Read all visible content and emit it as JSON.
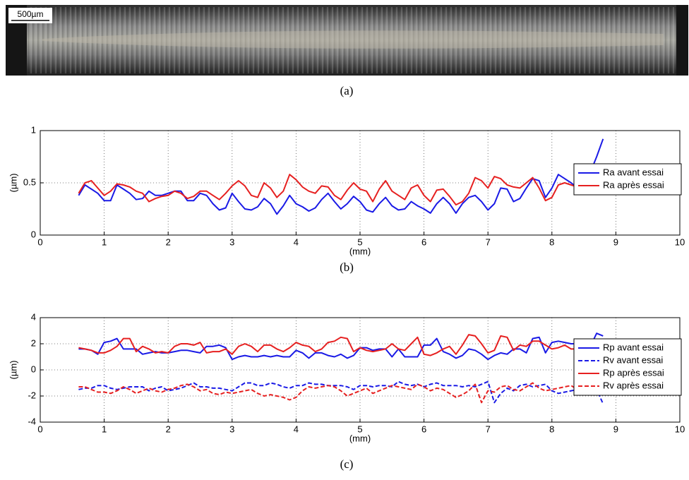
{
  "figure": {
    "scale_bar": "500µm",
    "captions": [
      "(a)",
      "(b)",
      "(c)"
    ]
  },
  "chart_data": [
    {
      "type": "line",
      "xlabel": "(mm)",
      "ylabel": "(µm)",
      "grid": true,
      "legend": "upper right",
      "xlim": [
        0,
        10
      ],
      "xticks": [
        0,
        1,
        2,
        3,
        4,
        5,
        6,
        7,
        8,
        9,
        10
      ],
      "ylim": [
        0,
        1
      ],
      "yticks": [
        0,
        0.5,
        1
      ],
      "x": [
        0.6,
        0.7,
        0.8,
        0.9,
        1.0,
        1.1,
        1.2,
        1.3,
        1.4,
        1.5,
        1.6,
        1.7,
        1.8,
        1.9,
        2.0,
        2.1,
        2.2,
        2.3,
        2.4,
        2.5,
        2.6,
        2.7,
        2.8,
        2.9,
        3.0,
        3.1,
        3.2,
        3.3,
        3.4,
        3.5,
        3.6,
        3.7,
        3.8,
        3.9,
        4.0,
        4.1,
        4.2,
        4.3,
        4.4,
        4.5,
        4.6,
        4.7,
        4.8,
        4.9,
        5.0,
        5.1,
        5.2,
        5.3,
        5.4,
        5.5,
        5.6,
        5.7,
        5.8,
        5.9,
        6.0,
        6.1,
        6.2,
        6.3,
        6.4,
        6.5,
        6.6,
        6.7,
        6.8,
        6.9,
        7.0,
        7.1,
        7.2,
        7.3,
        7.4,
        7.5,
        7.6,
        7.7,
        7.8,
        7.9,
        8.0,
        8.1,
        8.2,
        8.3,
        8.4,
        8.5,
        8.6,
        8.7,
        8.8
      ],
      "series": [
        {
          "name": "Ra avant essai",
          "color": "#1a1ae6",
          "dashed": false,
          "values": [
            0.38,
            0.48,
            0.44,
            0.4,
            0.33,
            0.33,
            0.48,
            0.44,
            0.4,
            0.34,
            0.35,
            0.42,
            0.38,
            0.38,
            0.4,
            0.42,
            0.42,
            0.33,
            0.33,
            0.4,
            0.38,
            0.3,
            0.24,
            0.26,
            0.4,
            0.32,
            0.25,
            0.24,
            0.27,
            0.35,
            0.3,
            0.2,
            0.28,
            0.38,
            0.3,
            0.27,
            0.23,
            0.26,
            0.34,
            0.4,
            0.32,
            0.25,
            0.3,
            0.37,
            0.32,
            0.24,
            0.22,
            0.3,
            0.36,
            0.28,
            0.24,
            0.25,
            0.32,
            0.28,
            0.25,
            0.21,
            0.3,
            0.36,
            0.3,
            0.21,
            0.3,
            0.36,
            0.38,
            0.32,
            0.24,
            0.3,
            0.45,
            0.44,
            0.32,
            0.35,
            0.45,
            0.54,
            0.52,
            0.36,
            0.45,
            0.58,
            0.54,
            0.5,
            0.45,
            0.43,
            0.6,
            0.75,
            0.92
          ]
        },
        {
          "name": "Ra après essai",
          "color": "#e62020",
          "dashed": false,
          "values": [
            0.4,
            0.5,
            0.52,
            0.45,
            0.38,
            0.42,
            0.49,
            0.48,
            0.46,
            0.42,
            0.4,
            0.32,
            0.35,
            0.37,
            0.38,
            0.42,
            0.4,
            0.35,
            0.37,
            0.42,
            0.42,
            0.38,
            0.34,
            0.4,
            0.47,
            0.52,
            0.47,
            0.38,
            0.36,
            0.5,
            0.45,
            0.36,
            0.42,
            0.58,
            0.53,
            0.46,
            0.42,
            0.4,
            0.47,
            0.46,
            0.38,
            0.34,
            0.43,
            0.5,
            0.44,
            0.42,
            0.32,
            0.44,
            0.52,
            0.42,
            0.38,
            0.34,
            0.45,
            0.48,
            0.38,
            0.32,
            0.43,
            0.44,
            0.37,
            0.29,
            0.32,
            0.4,
            0.55,
            0.52,
            0.45,
            0.56,
            0.54,
            0.48,
            0.46,
            0.45,
            0.5,
            0.55,
            0.45,
            0.33,
            0.36,
            0.48,
            0.5,
            0.48,
            0.46,
            0.44,
            null,
            null,
            null
          ]
        }
      ]
    },
    {
      "type": "line",
      "xlabel": "(mm)",
      "ylabel": "(µm)",
      "grid": true,
      "legend": "upper right",
      "xlim": [
        0,
        10
      ],
      "xticks": [
        0,
        1,
        2,
        3,
        4,
        5,
        6,
        7,
        8,
        9,
        10
      ],
      "ylim": [
        -4,
        4
      ],
      "yticks": [
        -4,
        -2,
        0,
        2,
        4
      ],
      "x": [
        0.6,
        0.7,
        0.8,
        0.9,
        1.0,
        1.1,
        1.2,
        1.3,
        1.4,
        1.5,
        1.6,
        1.7,
        1.8,
        1.9,
        2.0,
        2.1,
        2.2,
        2.3,
        2.4,
        2.5,
        2.6,
        2.7,
        2.8,
        2.9,
        3.0,
        3.1,
        3.2,
        3.3,
        3.4,
        3.5,
        3.6,
        3.7,
        3.8,
        3.9,
        4.0,
        4.1,
        4.2,
        4.3,
        4.4,
        4.5,
        4.6,
        4.7,
        4.8,
        4.9,
        5.0,
        5.1,
        5.2,
        5.3,
        5.4,
        5.5,
        5.6,
        5.7,
        5.8,
        5.9,
        6.0,
        6.1,
        6.2,
        6.3,
        6.4,
        6.5,
        6.6,
        6.7,
        6.8,
        6.9,
        7.0,
        7.1,
        7.2,
        7.3,
        7.4,
        7.5,
        7.6,
        7.7,
        7.8,
        7.9,
        8.0,
        8.1,
        8.2,
        8.3,
        8.4,
        8.5,
        8.6,
        8.7,
        8.8
      ],
      "series": [
        {
          "name": "Rp avant essai",
          "color": "#1a1ae6",
          "dashed": false,
          "values": [
            1.6,
            1.6,
            1.5,
            1.2,
            2.1,
            2.2,
            2.4,
            1.6,
            1.6,
            1.6,
            1.2,
            1.3,
            1.4,
            1.3,
            1.3,
            1.4,
            1.5,
            1.5,
            1.4,
            1.3,
            1.8,
            1.8,
            1.9,
            1.7,
            0.8,
            1.0,
            1.1,
            1.0,
            1.0,
            1.1,
            1.0,
            1.1,
            1.0,
            1.0,
            1.5,
            1.3,
            0.9,
            1.3,
            1.3,
            1.1,
            1.0,
            1.2,
            0.9,
            1.1,
            1.7,
            1.7,
            1.5,
            1.6,
            1.6,
            1.0,
            1.6,
            1.0,
            1.0,
            1.0,
            1.9,
            1.9,
            2.4,
            1.4,
            1.2,
            0.9,
            1.1,
            1.6,
            1.5,
            1.2,
            0.8,
            1.1,
            1.3,
            1.2,
            1.6,
            1.6,
            1.3,
            2.4,
            2.5,
            1.3,
            2.1,
            2.2,
            2.1,
            2.0,
            2.0,
            1.8,
            1.8,
            2.8,
            2.6
          ]
        },
        {
          "name": "Rv avant essai",
          "color": "#1a1ae6",
          "dashed": true,
          "values": [
            -1.5,
            -1.4,
            -1.4,
            -1.2,
            -1.2,
            -1.4,
            -1.5,
            -1.4,
            -1.3,
            -1.3,
            -1.3,
            -1.6,
            -1.4,
            -1.3,
            -1.6,
            -1.5,
            -1.4,
            -1.2,
            -1.0,
            -1.3,
            -1.3,
            -1.4,
            -1.4,
            -1.5,
            -1.6,
            -1.3,
            -1.0,
            -1.0,
            -1.2,
            -1.2,
            -1.0,
            -1.1,
            -1.3,
            -1.4,
            -1.2,
            -1.2,
            -1.0,
            -1.1,
            -1.1,
            -1.2,
            -1.2,
            -1.2,
            -1.3,
            -1.5,
            -1.2,
            -1.2,
            -1.3,
            -1.2,
            -1.2,
            -1.3,
            -0.9,
            -1.1,
            -1.2,
            -1.1,
            -1.3,
            -1.1,
            -1.0,
            -1.2,
            -1.2,
            -1.2,
            -1.3,
            -1.2,
            -1.3,
            -1.1,
            -0.9,
            -2.5,
            -1.8,
            -1.4,
            -1.6,
            -1.2,
            -1.1,
            -1.3,
            -1.2,
            -1.1,
            -1.6,
            -1.8,
            -1.7,
            -1.6,
            -1.5,
            -1.4,
            -1.3,
            -1.5,
            -2.6
          ]
        },
        {
          "name": "Rp après essai",
          "color": "#e62020",
          "dashed": false,
          "values": [
            1.7,
            1.6,
            1.5,
            1.3,
            1.3,
            1.5,
            1.8,
            2.4,
            2.4,
            1.4,
            1.8,
            1.6,
            1.3,
            1.4,
            1.3,
            1.8,
            2.0,
            2.0,
            1.9,
            2.1,
            1.3,
            1.4,
            1.4,
            1.6,
            1.2,
            1.8,
            2.0,
            1.8,
            1.4,
            1.9,
            1.9,
            1.6,
            1.4,
            1.7,
            2.1,
            1.9,
            1.8,
            1.4,
            1.6,
            2.1,
            2.2,
            2.5,
            2.4,
            1.4,
            1.7,
            1.5,
            1.4,
            1.5,
            1.6,
            2.0,
            1.6,
            1.5,
            2.0,
            2.5,
            1.2,
            1.1,
            1.3,
            1.6,
            1.8,
            1.2,
            1.9,
            2.7,
            2.6,
            2.0,
            1.3,
            1.5,
            2.6,
            2.5,
            1.5,
            1.9,
            1.8,
            2.2,
            2.2,
            1.9,
            1.6,
            1.7,
            1.9,
            1.6,
            1.6,
            1.5,
            null,
            null,
            null
          ]
        },
        {
          "name": "Rv après essai",
          "color": "#e62020",
          "dashed": true,
          "values": [
            -1.3,
            -1.3,
            -1.5,
            -1.7,
            -1.7,
            -1.8,
            -1.6,
            -1.3,
            -1.5,
            -1.8,
            -1.6,
            -1.4,
            -1.6,
            -1.7,
            -1.5,
            -1.4,
            -1.2,
            -1.1,
            -1.3,
            -1.6,
            -1.5,
            -1.8,
            -1.9,
            -1.7,
            -1.8,
            -1.7,
            -1.6,
            -1.5,
            -1.8,
            -2.0,
            -1.9,
            -2.0,
            -2.1,
            -2.3,
            -2.1,
            -1.6,
            -1.3,
            -1.4,
            -1.3,
            -1.2,
            -1.3,
            -1.6,
            -2.0,
            -1.8,
            -1.6,
            -1.4,
            -1.8,
            -1.6,
            -1.4,
            -1.2,
            -1.3,
            -1.4,
            -1.5,
            -1.1,
            -1.3,
            -1.6,
            -1.4,
            -1.5,
            -1.8,
            -2.1,
            -1.9,
            -1.6,
            -1.1,
            -2.5,
            -1.6,
            -1.7,
            -1.3,
            -1.2,
            -1.5,
            -1.6,
            -1.3,
            -1.0,
            -1.4,
            -1.6,
            -1.5,
            -1.4,
            -1.3,
            -1.2,
            -1.5,
            -1.4,
            null,
            null,
            null
          ]
        }
      ]
    }
  ]
}
